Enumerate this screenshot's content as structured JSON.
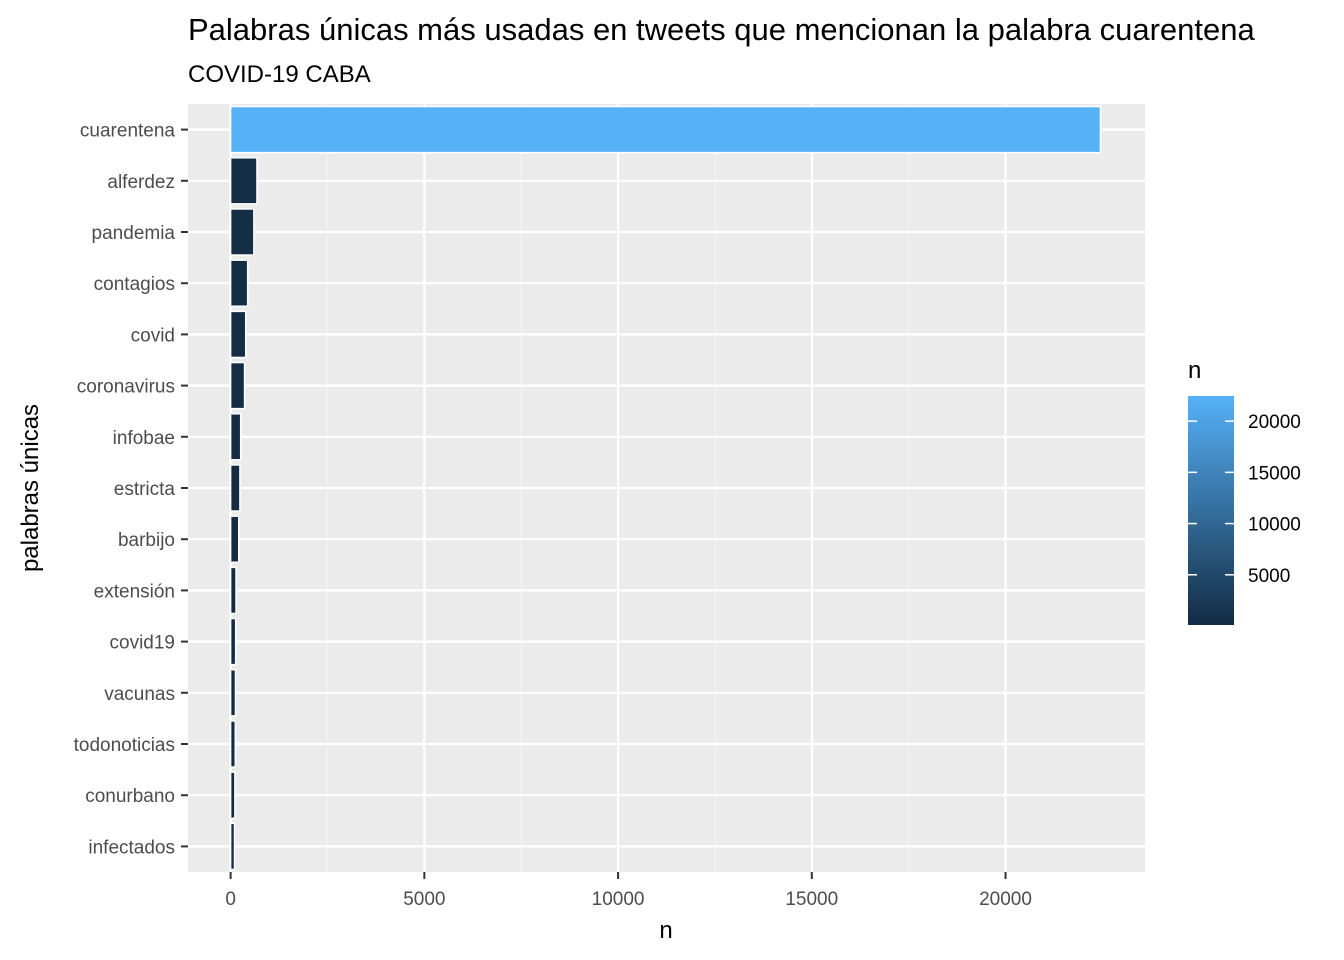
{
  "chart_data": {
    "type": "bar",
    "orientation": "horizontal",
    "title": "Palabras únicas más usadas en tweets que mencionan la palabra cuarentena",
    "subtitle": "COVID-19 CABA",
    "xlabel": "n",
    "ylabel": "palabras únicas",
    "categories": [
      "cuarentena",
      "alferdez",
      "pandemia",
      "contagios",
      "covid",
      "coronavirus",
      "infobae",
      "estricta",
      "barbijo",
      "extensión",
      "covid19",
      "vacunas",
      "todonoticias",
      "conurbano",
      "infectados"
    ],
    "values": [
      22450,
      680,
      600,
      440,
      390,
      360,
      260,
      240,
      210,
      140,
      130,
      125,
      120,
      110,
      100
    ],
    "xlim": [
      -1100,
      23600
    ],
    "xticks": [
      0,
      5000,
      10000,
      15000,
      20000
    ],
    "grid": true,
    "legend": {
      "title": "n",
      "placement": "right",
      "type": "colorbar",
      "range": [
        100,
        22450
      ],
      "ticks": [
        5000,
        10000,
        15000,
        20000
      ],
      "color_low": "#132b43",
      "color_high": "#56b1f7"
    },
    "colors": {
      "panel_background": "#ebebeb",
      "grid_major": "#ffffff",
      "grid_minor": "#f4f4f4"
    }
  }
}
